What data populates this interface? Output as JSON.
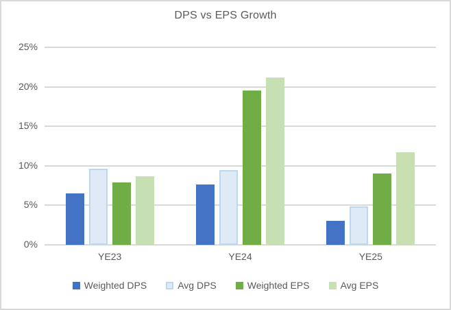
{
  "window": {
    "background": "#FFFFFF",
    "border_color": "#D9D9D9"
  },
  "chart_data": {
    "type": "bar",
    "title": "DPS vs EPS Growth",
    "categories": [
      "YE23",
      "YE24",
      "YE25"
    ],
    "series": [
      {
        "name": "Weighted DPS",
        "values": [
          6.5,
          7.6,
          3.0
        ],
        "fill": "#4472C4",
        "border": "#4472C4"
      },
      {
        "name": "Avg DPS",
        "values": [
          9.6,
          9.5,
          4.9
        ],
        "fill": "#DEEAF6",
        "border": "#BDD7EE"
      },
      {
        "name": "Weighted EPS",
        "values": [
          7.9,
          19.5,
          9.0
        ],
        "fill": "#70AD47",
        "border": "#70AD47"
      },
      {
        "name": "Avg EPS",
        "values": [
          8.7,
          21.2,
          11.7
        ],
        "fill": "#C6E0B4",
        "border": "#C6E0B4"
      }
    ],
    "unit": "%",
    "y_axis": {
      "min": 0,
      "max": 25,
      "ticks": [
        {
          "label": "0%",
          "value": 0
        },
        {
          "label": "5%",
          "value": 5
        },
        {
          "label": "10%",
          "value": 10
        },
        {
          "label": "15%",
          "value": 15
        },
        {
          "label": "20%",
          "value": 20
        },
        {
          "label": "25%",
          "value": 25
        }
      ]
    },
    "grid": true,
    "legend_position": "bottom",
    "colors": {
      "title_text": "#595959",
      "axis_text": "#595959",
      "gridline": "#D9D9D9"
    }
  }
}
